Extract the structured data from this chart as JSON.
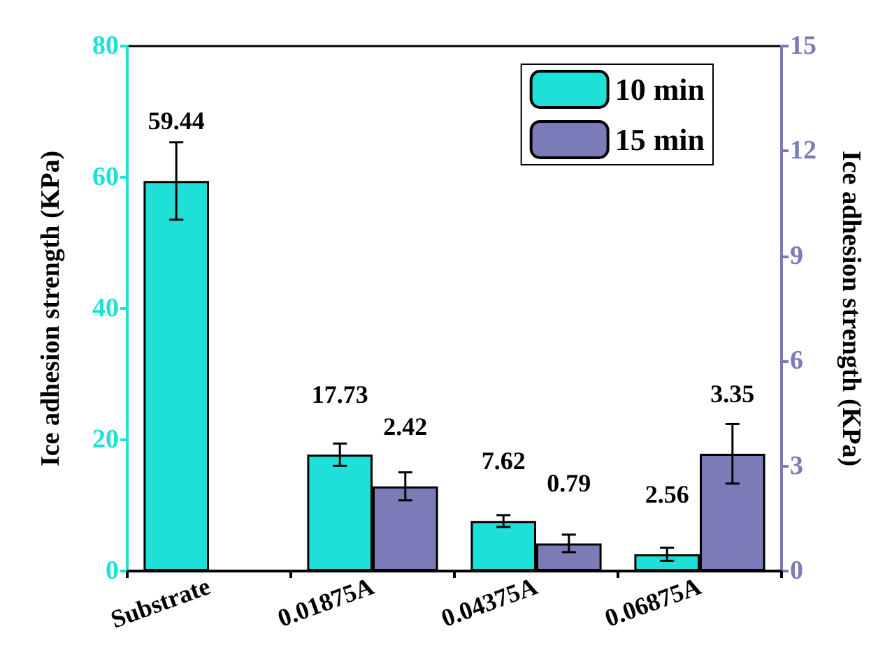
{
  "chart_data": {
    "type": "bar",
    "ylabel": "Ice adhesion strength (KPa)",
    "y2label": "Ice adhesion strength (KPa)",
    "categories": [
      "Substrate",
      "0.01875A",
      "0.04375A",
      "0.06875A"
    ],
    "series": [
      {
        "name": "10 min",
        "color": "#1ee0d8",
        "values": [
          59.44,
          17.73,
          7.62,
          2.56
        ],
        "errors": [
          5.9,
          1.7,
          0.9,
          1.0
        ]
      },
      {
        "name": "15 min",
        "color": "#7b7bb8",
        "axis": "y2",
        "values": [
          null,
          2.42,
          0.79,
          3.35
        ],
        "errors": [
          null,
          0.4,
          0.25,
          0.85
        ]
      }
    ],
    "ylim": [
      0,
      80
    ],
    "yticks": [
      0,
      20,
      40,
      60,
      80
    ],
    "y2lim": [
      0,
      15
    ],
    "y2ticks": [
      0,
      3,
      6,
      9,
      12,
      15
    ],
    "data_labels": true,
    "legend": "top right",
    "grid": false
  }
}
